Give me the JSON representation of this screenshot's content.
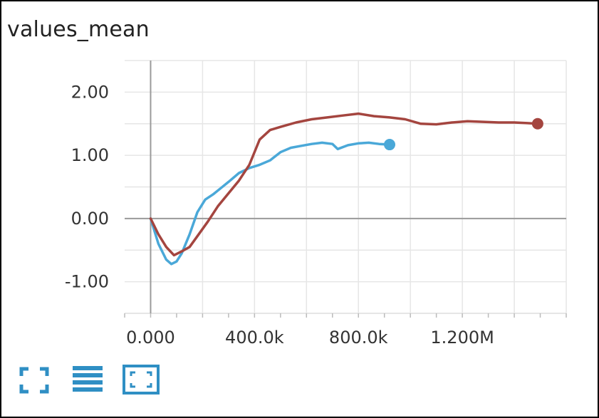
{
  "title": "values_mean",
  "colors": {
    "series_blue": "#4aa8d8",
    "series_red": "#a4453f",
    "grid": "#e6e6e6",
    "axis": "#9a9a9a",
    "icon": "#2f8fc4"
  },
  "toolbar": {
    "icons": [
      "fullscreen-icon",
      "menu-list-icon",
      "fit-to-screen-icon"
    ]
  },
  "chart_data": {
    "type": "line",
    "title": "values_mean",
    "xlabel": "",
    "ylabel": "",
    "xlim": [
      -100000,
      1600000
    ],
    "ylim": [
      -1.5,
      2.5
    ],
    "y_ticks": [
      2.0,
      1.0,
      0.0,
      -1.0
    ],
    "y_tick_labels": [
      "2.00",
      "1.00",
      "0.00",
      "-1.00"
    ],
    "x_ticks": [
      0,
      400000,
      800000,
      1200000
    ],
    "x_tick_labels": [
      "0.000",
      "400.0k",
      "800.0k",
      "1.200M"
    ],
    "grid": true,
    "series": [
      {
        "color": "#4aa8d8",
        "x": [
          0,
          30000,
          60000,
          80000,
          100000,
          120000,
          150000,
          180000,
          210000,
          240000,
          270000,
          300000,
          340000,
          380000,
          420000,
          460000,
          500000,
          540000,
          580000,
          620000,
          660000,
          700000,
          720000,
          760000,
          800000,
          840000,
          880000,
          920000
        ],
        "y": [
          0.0,
          -0.4,
          -0.65,
          -0.72,
          -0.68,
          -0.55,
          -0.25,
          0.1,
          0.3,
          0.38,
          0.48,
          0.58,
          0.72,
          0.8,
          0.85,
          0.92,
          1.05,
          1.12,
          1.15,
          1.18,
          1.2,
          1.18,
          1.1,
          1.16,
          1.19,
          1.2,
          1.18,
          1.17
        ]
      },
      {
        "color": "#a4453f",
        "x": [
          0,
          30000,
          60000,
          90000,
          120000,
          150000,
          180000,
          220000,
          260000,
          300000,
          340000,
          380000,
          420000,
          460000,
          500000,
          560000,
          620000,
          680000,
          740000,
          800000,
          860000,
          920000,
          980000,
          1040000,
          1100000,
          1160000,
          1220000,
          1280000,
          1340000,
          1400000,
          1450000,
          1490000
        ],
        "y": [
          0.0,
          -0.25,
          -0.45,
          -0.58,
          -0.52,
          -0.45,
          -0.28,
          -0.05,
          0.2,
          0.4,
          0.6,
          0.85,
          1.25,
          1.4,
          1.45,
          1.52,
          1.57,
          1.6,
          1.63,
          1.66,
          1.62,
          1.6,
          1.57,
          1.5,
          1.49,
          1.52,
          1.54,
          1.53,
          1.52,
          1.52,
          1.51,
          1.5
        ]
      }
    ]
  }
}
